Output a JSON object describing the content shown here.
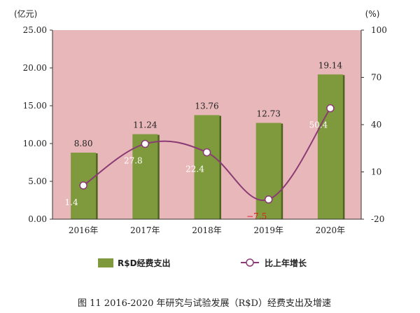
{
  "chart_data": {
    "type": "bar",
    "title": "图 11 2016-2020 年研究与试验发展（R$D）经费支出及增速",
    "categories": [
      "2016年",
      "2017年",
      "2018年",
      "2019年",
      "2020年"
    ],
    "y_left": {
      "unit": "(亿元)",
      "ylim": [
        0,
        25
      ],
      "ticks": [
        "0.00",
        "5.00",
        "10.00",
        "15.00",
        "20.00",
        "25.00"
      ],
      "tick_values": [
        0,
        5,
        10,
        15,
        20,
        25
      ]
    },
    "y_right": {
      "unit": "(%)",
      "ylim": [
        -20,
        100
      ],
      "ticks": [
        "-20",
        "10",
        "40",
        "70",
        "100"
      ],
      "tick_values": [
        -20,
        10,
        40,
        70,
        100
      ]
    },
    "series": [
      {
        "name": "R$D经费支出",
        "kind": "bar",
        "axis": "left",
        "values": [
          8.8,
          11.24,
          13.76,
          12.73,
          19.14
        ],
        "labels": [
          "8.80",
          "11.24",
          "13.76",
          "12.73",
          "19.14"
        ]
      },
      {
        "name": "比上年增长",
        "kind": "line",
        "axis": "right",
        "values": [
          1.4,
          27.8,
          22.4,
          -7.5,
          50.4
        ],
        "labels": [
          "1.4",
          "27.8",
          "22.4",
          "−7.5",
          "50.4"
        ],
        "label_colors": [
          "#ffffff",
          "#ffffff",
          "#ffffff",
          "#e02020",
          "#ffffff"
        ]
      }
    ],
    "legend": [
      "R$D经费支出",
      "比上年增长"
    ],
    "legend_position": "bottom",
    "grid": false
  },
  "colors": {
    "plot_bg": "#e8b7b9",
    "bar": "#7f9a3c",
    "bar_shadow": "#4f6422",
    "line": "#8a3b74",
    "marker_fill": "#ffffff",
    "axis": "#333333"
  }
}
